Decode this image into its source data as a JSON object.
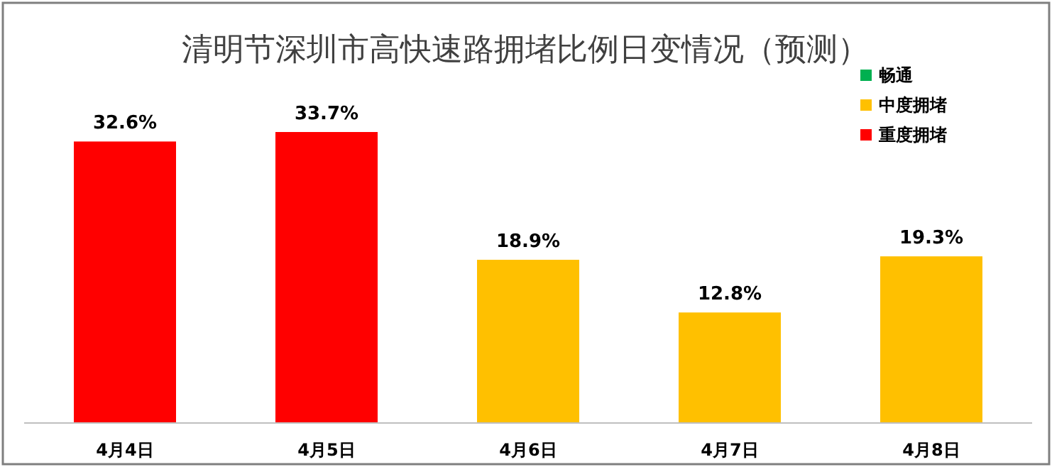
{
  "chart_data": {
    "type": "bar",
    "title": "清明节深圳市高快速路拥堵比例日变情况（预测）",
    "categories": [
      "4月4日",
      "4月5日",
      "4月6日",
      "4月7日",
      "4月8日"
    ],
    "legend": "top right",
    "series": [
      {
        "name": "畅通",
        "color": "#00b050",
        "values": [
          null,
          null,
          null,
          null,
          null
        ],
        "value_labels": [
          null,
          null,
          null,
          null,
          null
        ]
      },
      {
        "name": "中度拥堵",
        "color": "#ffc000",
        "values": [
          null,
          null,
          18.9,
          12.8,
          19.3
        ],
        "value_labels": [
          null,
          null,
          "18.9%",
          "12.8%",
          "19.3%"
        ]
      },
      {
        "name": "重度拥堵",
        "color": "#ff0000",
        "values": [
          32.6,
          33.7,
          null,
          null,
          null
        ],
        "value_labels": [
          "32.6%",
          "33.7%",
          null,
          null,
          null
        ]
      }
    ]
  }
}
